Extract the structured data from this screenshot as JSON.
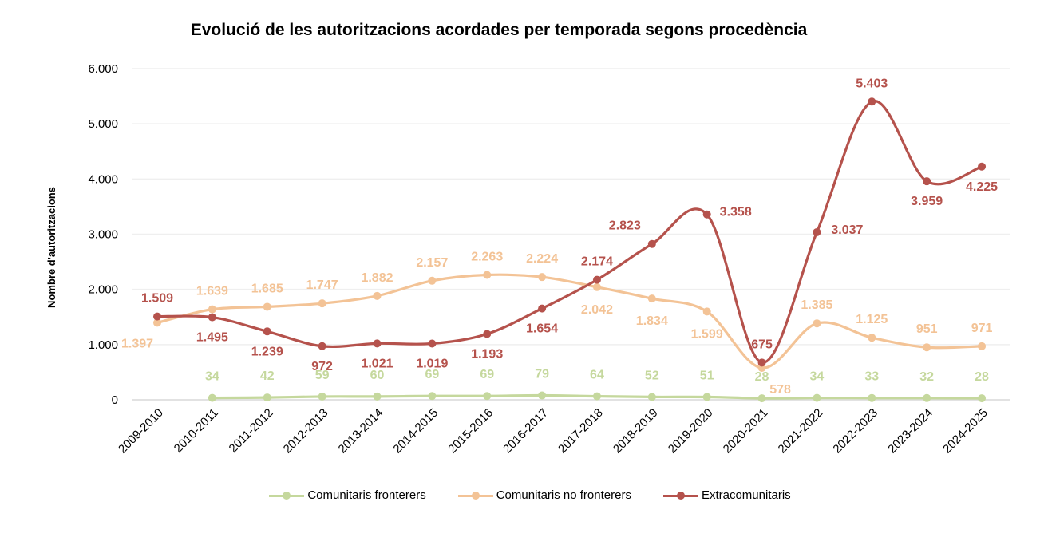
{
  "chart_data": {
    "type": "line",
    "title": "Evolució de les autoritzacions acordades per temporada segons procedència",
    "xlabel": "",
    "ylabel": "Nombre d'autoritzacions",
    "ylim": [
      0,
      6000
    ],
    "yticks": [
      "0",
      "1.000",
      "2.000",
      "3.000",
      "4.000",
      "5.000",
      "6.000"
    ],
    "ytick_values": [
      0,
      1000,
      2000,
      3000,
      4000,
      5000,
      6000
    ],
    "grid": "horizontal",
    "legend": "bottom",
    "smooth": true,
    "categories": [
      "2009-2010",
      "2010-2011",
      "2011-2012",
      "2012-2013",
      "2013-2014",
      "2014-2015",
      "2015-2016",
      "2016-2017",
      "2017-2018",
      "2018-2019",
      "2019-2020",
      "2020-2021",
      "2021-2022",
      "2022-2023",
      "2023-2024",
      "2024-2025"
    ],
    "series": [
      {
        "name": "Comunitaris fronterers",
        "color": "#c5d89d",
        "values": [
          null,
          34,
          42,
          59,
          60,
          69,
          69,
          79,
          64,
          52,
          51,
          28,
          34,
          33,
          32,
          28
        ],
        "labels": [
          "",
          "34",
          "42",
          "59",
          "60",
          "69",
          "69",
          "79",
          "64",
          "52",
          "51",
          "28",
          "34",
          "33",
          "32",
          "28"
        ]
      },
      {
        "name": "Comunitaris no fronterers",
        "color": "#f3c396",
        "values": [
          1397,
          1639,
          1685,
          1747,
          1882,
          2157,
          2263,
          2224,
          2042,
          1834,
          1599,
          578,
          1385,
          1125,
          951,
          971
        ],
        "labels": [
          "1.397",
          "1.639",
          "1.685",
          "1.747",
          "1.882",
          "2.157",
          "2.263",
          "2.224",
          "2.042",
          "1.834",
          "1.599",
          "578",
          "1.385",
          "1.125",
          "951",
          "971"
        ]
      },
      {
        "name": "Extracomunitaris",
        "color": "#b5524c",
        "values": [
          1509,
          1495,
          1239,
          972,
          1021,
          1019,
          1193,
          1654,
          2174,
          2823,
          3358,
          675,
          3037,
          5403,
          3959,
          4225
        ],
        "labels": [
          "1.509",
          "1.495",
          "1.239",
          "972",
          "1.021",
          "1.019",
          "1.193",
          "1.654",
          "2.174",
          "2.823",
          "3.358",
          "675",
          "3.037",
          "5.403",
          "3.959",
          "4.225"
        ]
      }
    ]
  }
}
